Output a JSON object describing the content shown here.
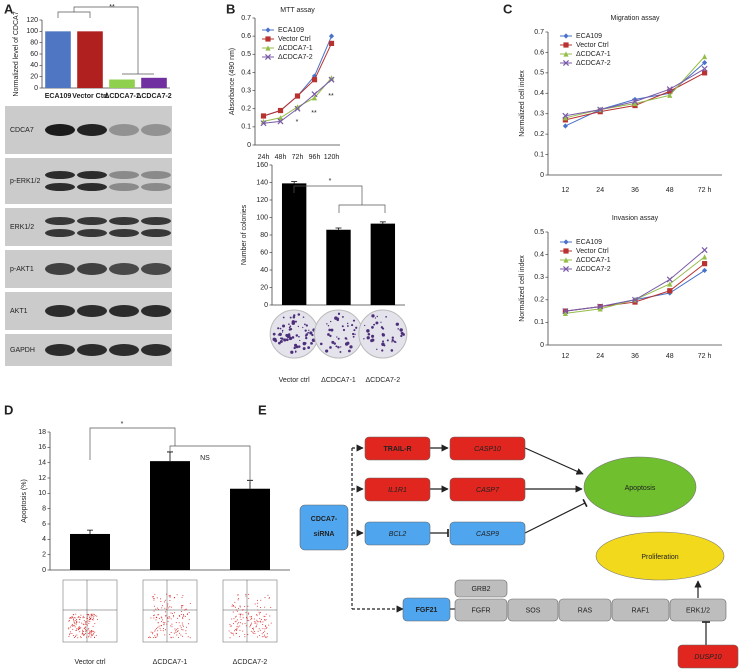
{
  "panels": [
    "A",
    "B",
    "C",
    "D",
    "E"
  ],
  "chart_data": [
    {
      "type": "bar",
      "y_label": "Normalized level of CDCA7",
      "categories": [
        "ECA109",
        "Vector Ctrl",
        "ΔCDCA7-1",
        "ΔCDCA7-2"
      ],
      "values": [
        100,
        100,
        15,
        18
      ],
      "colors": [
        "#4f76c2",
        "#b0201f",
        "#8fd14f",
        "#7030a0"
      ],
      "ylim": [
        0,
        120
      ],
      "yticks": [
        0,
        20,
        40,
        60,
        80,
        100,
        120
      ],
      "annotations": [
        "**"
      ]
    },
    {
      "type": "line",
      "title": "MTT assay",
      "y_label": "Absorbance (490 nm)",
      "categories": [
        "24h",
        "48h",
        "72h",
        "96h",
        "120h"
      ],
      "series": [
        {
          "name": "ECA109",
          "color": "#4a72c9",
          "marker": "diamond",
          "values": [
            0.16,
            0.19,
            0.27,
            0.38,
            0.6
          ]
        },
        {
          "name": "Vector Ctrl",
          "color": "#b8322f",
          "marker": "square",
          "values": [
            0.16,
            0.19,
            0.27,
            0.36,
            0.56
          ]
        },
        {
          "name": "ΔCDCA7-1",
          "color": "#95bd4a",
          "marker": "triangle",
          "values": [
            0.13,
            0.15,
            0.21,
            0.26,
            0.37
          ]
        },
        {
          "name": "ΔCDCA7-2",
          "color": "#7a5ba8",
          "marker": "cross",
          "values": [
            0.12,
            0.13,
            0.2,
            0.28,
            0.36
          ]
        }
      ],
      "ylim": [
        0,
        0.7
      ],
      "yticks": [
        0,
        0.1,
        0.2,
        0.3,
        0.4,
        0.5,
        0.6,
        0.7
      ],
      "annotations": [
        "*",
        "**",
        "**"
      ]
    },
    {
      "type": "bar",
      "y_label": "Number of colonies",
      "categories": [
        "Vector ctrl",
        "ΔCDCA7-1",
        "ΔCDCA7-2"
      ],
      "values": [
        139,
        86,
        93
      ],
      "errors": [
        2,
        2,
        2
      ],
      "color": "#000000",
      "ylim": [
        0,
        160
      ],
      "yticks": [
        0,
        20,
        40,
        60,
        80,
        100,
        120,
        140,
        160
      ],
      "annotations": [
        "*"
      ]
    },
    {
      "type": "line",
      "title": "Migration assay",
      "y_label": "Normalized cell index",
      "categories": [
        "12",
        "24",
        "36",
        "48",
        "72 h"
      ],
      "series": [
        {
          "name": "ECA109",
          "color": "#4a72c9",
          "marker": "diamond",
          "values": [
            0.24,
            0.32,
            0.37,
            0.4,
            0.55
          ]
        },
        {
          "name": "Vector Ctrl",
          "color": "#b8322f",
          "marker": "square",
          "values": [
            0.27,
            0.31,
            0.34,
            0.41,
            0.5
          ]
        },
        {
          "name": "ΔCDCA7-1",
          "color": "#95bd4a",
          "marker": "triangle",
          "values": [
            0.28,
            0.32,
            0.35,
            0.39,
            0.58
          ]
        },
        {
          "name": "ΔCDCA7-2",
          "color": "#7a5ba8",
          "marker": "cross",
          "values": [
            0.29,
            0.32,
            0.36,
            0.42,
            0.52
          ]
        }
      ],
      "ylim": [
        0,
        0.7
      ],
      "yticks": [
        0,
        0.1,
        0.2,
        0.3,
        0.4,
        0.5,
        0.6,
        0.7
      ]
    },
    {
      "type": "line",
      "title": "Invasion assay",
      "y_label": "Normalized cell index",
      "categories": [
        "12",
        "24",
        "36",
        "48",
        "72 h"
      ],
      "series": [
        {
          "name": "ECA109",
          "color": "#4a72c9",
          "marker": "diamond",
          "values": [
            0.15,
            0.17,
            0.2,
            0.23,
            0.33
          ]
        },
        {
          "name": "Vector Ctrl",
          "color": "#b8322f",
          "marker": "square",
          "values": [
            0.15,
            0.17,
            0.19,
            0.24,
            0.36
          ]
        },
        {
          "name": "ΔCDCA7-1",
          "color": "#95bd4a",
          "marker": "triangle",
          "values": [
            0.14,
            0.16,
            0.2,
            0.27,
            0.39
          ]
        },
        {
          "name": "ΔCDCA7-2",
          "color": "#7a5ba8",
          "marker": "cross",
          "values": [
            0.15,
            0.17,
            0.2,
            0.29,
            0.42
          ]
        }
      ],
      "ylim": [
        0,
        0.5
      ],
      "yticks": [
        0,
        0.1,
        0.2,
        0.3,
        0.4,
        0.5
      ]
    },
    {
      "type": "bar",
      "y_label": "Apoptosis (%)",
      "categories": [
        "Vector ctrl",
        "ΔCDCA7-1",
        "ΔCDCA7-2"
      ],
      "values": [
        4.7,
        14.2,
        10.6
      ],
      "errors": [
        0.5,
        1.2,
        1.1
      ],
      "color": "#000000",
      "ylim": [
        0,
        18
      ],
      "yticks": [
        0,
        2,
        4,
        6,
        8,
        10,
        12,
        14,
        16,
        18
      ],
      "annotations": [
        "*",
        "NS"
      ]
    }
  ],
  "blot": {
    "labels": [
      "CDCA7",
      "p-ERK1/2",
      "ERK1/2",
      "p-AKT1",
      "AKT1",
      "GAPDH"
    ]
  },
  "diagram": {
    "source": [
      "CDCA7-",
      "siRNA"
    ],
    "nodes": [
      "TRAIL-R",
      "CASP10",
      "IL1R1",
      "CASP7",
      "BCL2",
      "CASP9",
      "FGF21",
      "GRB2",
      "FGFR",
      "SOS",
      "RAS",
      "RAF1",
      "ERK1/2",
      "DUSP10"
    ],
    "outcomes": [
      "Apoptosis",
      "Proliferation"
    ]
  }
}
